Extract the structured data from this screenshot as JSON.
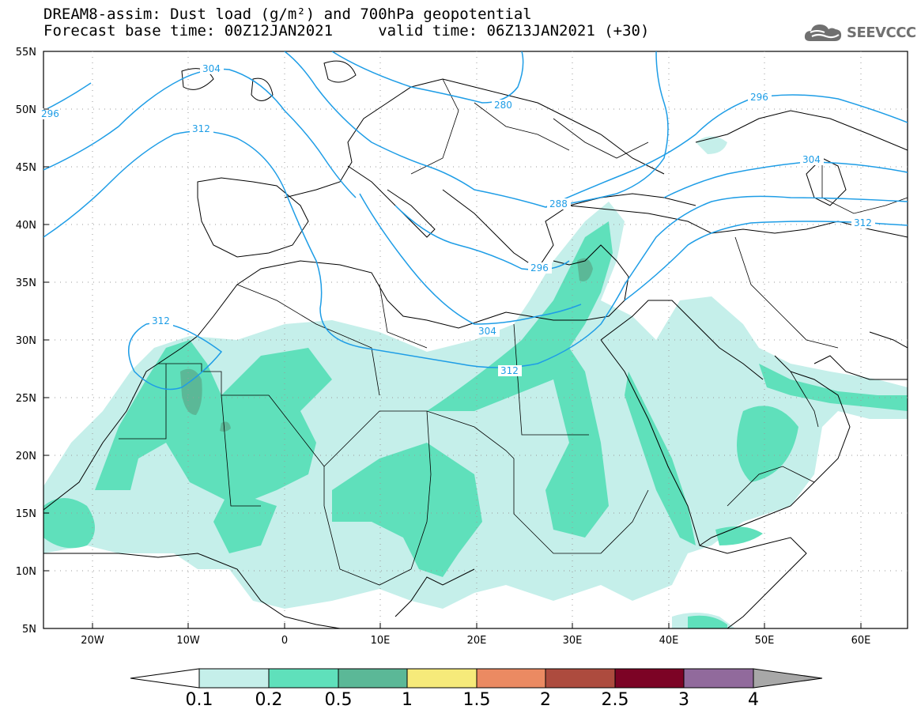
{
  "header": {
    "line1": "DREAM8-assim: Dust load (g/m²) and 700hPa geopotential",
    "line2": "Forecast base time: 00Z12JAN2021     valid time: 06Z13JAN2021 (+30)"
  },
  "logo": {
    "text": "SEEVCCC",
    "icon": "cloud-icon"
  },
  "map": {
    "projection": "lat-lon",
    "lon_range": [
      -25,
      65
    ],
    "lat_range": [
      5,
      55
    ],
    "lat_labels": [
      "55N",
      "50N",
      "45N",
      "40N",
      "35N",
      "30N",
      "25N",
      "20N",
      "15N",
      "10N",
      "5N"
    ],
    "lon_labels": [
      "20W",
      "10W",
      "0",
      "10E",
      "20E",
      "30E",
      "40E",
      "50E",
      "60E"
    ],
    "contour_labels": [
      "304",
      "280",
      "296",
      "312",
      "288",
      "296",
      "304",
      "312",
      "296",
      "304",
      "312",
      "312"
    ]
  },
  "colorbar": {
    "labels": [
      "0.1",
      "0.2",
      "0.5",
      "1",
      "1.5",
      "2",
      "2.5",
      "3",
      "4"
    ],
    "colors": [
      "#ffffff",
      "#c5efea",
      "#5fe0bb",
      "#5bb897",
      "#f6ea7a",
      "#eb8a62",
      "#ad4b3e",
      "#7c0325",
      "#916a9c",
      "#a8a8a8"
    ]
  }
}
